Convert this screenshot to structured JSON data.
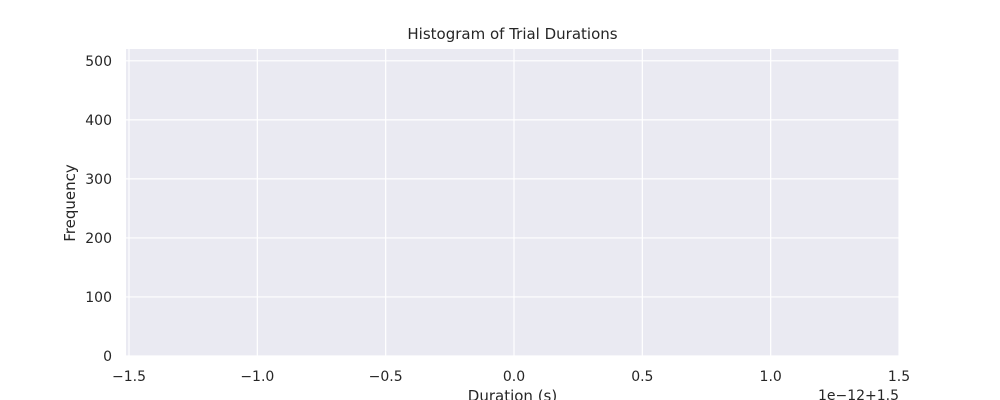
{
  "chart_data": {
    "type": "bar",
    "title": "Histogram of Trial Durations",
    "xlabel": "Duration (s)",
    "ylabel": "Frequency",
    "x_offset_label": "1e−12+1.5",
    "xlim": [
      -1.5,
      1.5
    ],
    "ylim": [
      0,
      520
    ],
    "x_ticks": [
      {
        "value": -1.5,
        "label": "−1.5"
      },
      {
        "value": -1.0,
        "label": "−1.0"
      },
      {
        "value": -0.5,
        "label": "−0.5"
      },
      {
        "value": 0.0,
        "label": "0.0"
      },
      {
        "value": 0.5,
        "label": "0.5"
      },
      {
        "value": 1.0,
        "label": "1.0"
      },
      {
        "value": 1.5,
        "label": "1.5"
      }
    ],
    "y_ticks": [
      {
        "value": 0,
        "label": "0"
      },
      {
        "value": 100,
        "label": "100"
      },
      {
        "value": 200,
        "label": "200"
      },
      {
        "value": 300,
        "label": "300"
      },
      {
        "value": 400,
        "label": "400"
      },
      {
        "value": 500,
        "label": "500"
      }
    ],
    "bins": [
      {
        "x_start": -1.5,
        "x_end": -1.49,
        "value": 0
      }
    ],
    "grid": true,
    "colors": {
      "plot_background": "#eaeaf2",
      "grid": "#ffffff",
      "text": "#262626",
      "bar": "#4c72b0"
    }
  }
}
